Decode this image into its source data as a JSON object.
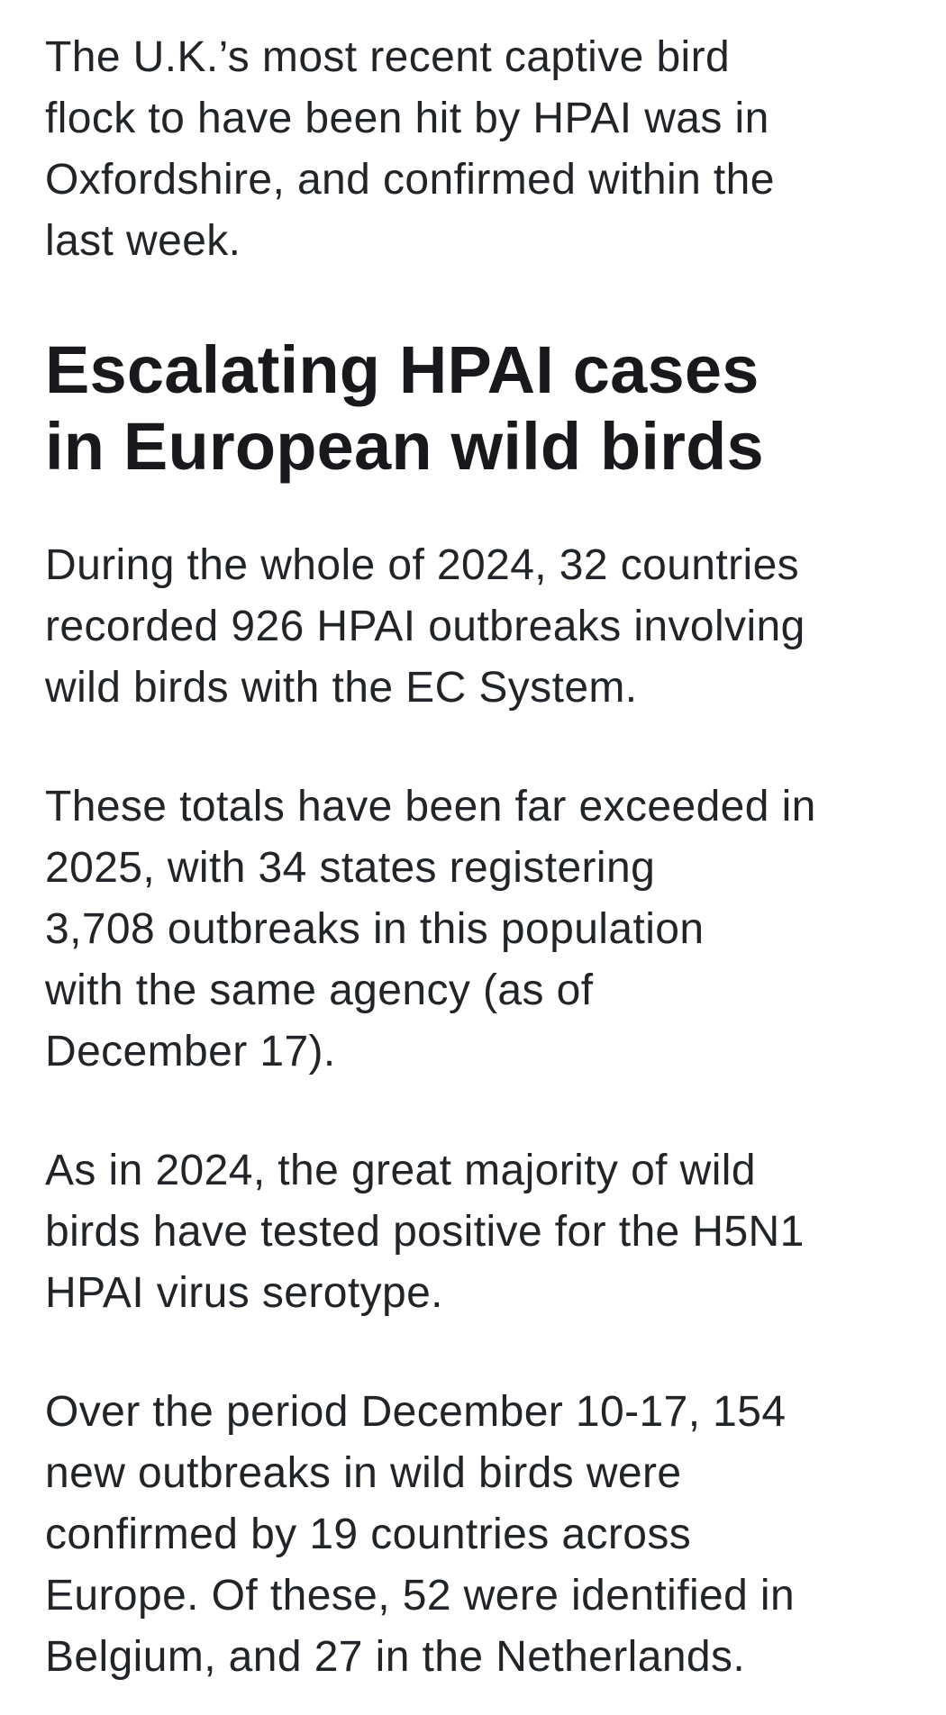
{
  "page": {
    "background_color": "#ffffff",
    "body_text_color": "#212428",
    "heading_text_color": "#17191c"
  },
  "article": {
    "intro_paragraph": "The U.K.’s most recent captive bird\nflock to have been hit by HPAI was in\nOxfordshire, and confirmed within the\nlast week.",
    "section_heading": "Escalating HPAI cases\nin European wild birds",
    "body_paragraphs": [
      "During the whole of 2024, 32 countries\nrecorded 926 HPAI outbreaks involving\nwild birds with the EC System.",
      "These totals have been far exceeded in\n2025, with 34 states registering\n3,708 outbreaks in this population\nwith the same agency (as of\nDecember 17).",
      "As in 2024, the great majority of wild\nbirds have tested positive for the H5N1\nHPAI virus serotype.",
      "Over the period December 10-17, 154\nnew outbreaks in wild birds were\nconfirmed by 19 countries across\nEurope. Of these, 52 were identified in\nBelgium, and 27 in the Netherlands."
    ]
  }
}
